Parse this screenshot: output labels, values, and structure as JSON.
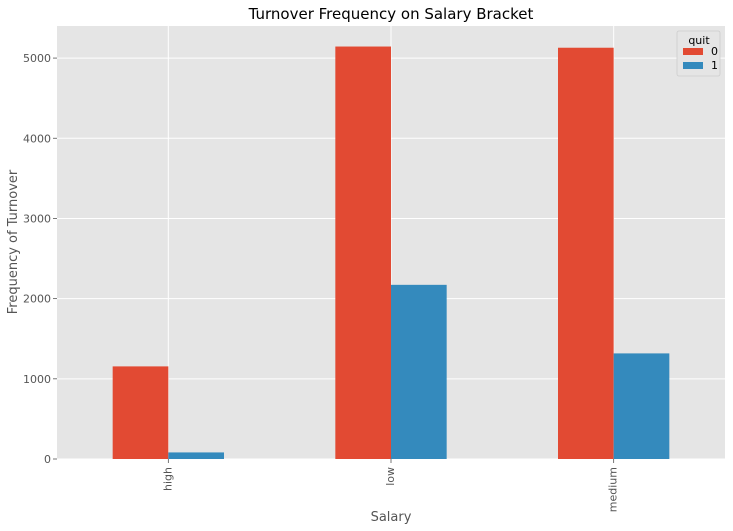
{
  "chart_data": {
    "type": "bar",
    "title": "Turnover Frequency on Salary Bracket",
    "xlabel": "Salary",
    "ylabel": "Frequency of Turnover",
    "categories": [
      "high",
      "low",
      "medium"
    ],
    "series": [
      {
        "name": "0",
        "values": [
          1155,
          5144,
          5129
        ],
        "color": "#E24A33"
      },
      {
        "name": "1",
        "values": [
          82,
          2172,
          1317
        ],
        "color": "#348ABD"
      }
    ],
    "ylim": [
      0,
      5400
    ],
    "yticks": [
      0,
      1000,
      2000,
      3000,
      4000,
      5000
    ],
    "legend": {
      "title": "quit",
      "placement": "top-right"
    },
    "grid": true,
    "style": {
      "plot_bg": "#E5E5E5",
      "grid_color": "#FFFFFF"
    }
  }
}
